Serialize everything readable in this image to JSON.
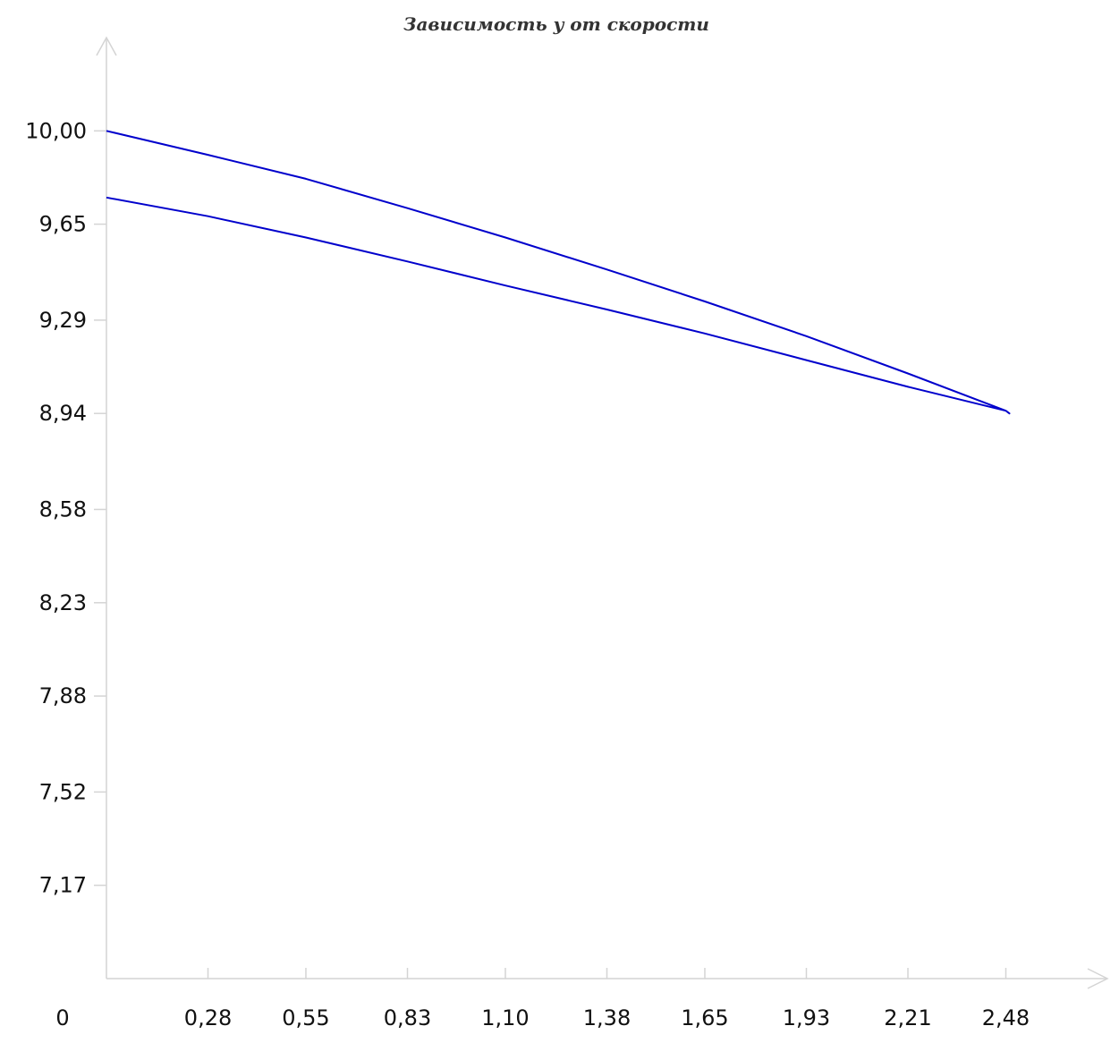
{
  "chart_data": {
    "type": "line",
    "title": "Зависимость y от скорости",
    "xlabel": "",
    "ylabel": "",
    "origin_label": "0",
    "x_ticks": [
      {
        "value": 0.28,
        "label": "0,28"
      },
      {
        "value": 0.55,
        "label": "0,55"
      },
      {
        "value": 0.83,
        "label": "0,83"
      },
      {
        "value": 1.1,
        "label": "1,10"
      },
      {
        "value": 1.38,
        "label": "1,38"
      },
      {
        "value": 1.65,
        "label": "1,65"
      },
      {
        "value": 1.93,
        "label": "1,93"
      },
      {
        "value": 2.21,
        "label": "2,21"
      },
      {
        "value": 2.48,
        "label": "2,48"
      }
    ],
    "y_ticks": [
      {
        "value": 10.0,
        "label": "10,00"
      },
      {
        "value": 9.65,
        "label": "9,65"
      },
      {
        "value": 9.29,
        "label": "9,29"
      },
      {
        "value": 8.94,
        "label": "8,94"
      },
      {
        "value": 8.58,
        "label": "8,58"
      },
      {
        "value": 8.23,
        "label": "8,23"
      },
      {
        "value": 7.88,
        "label": "7,88"
      },
      {
        "value": 7.52,
        "label": "7,52"
      },
      {
        "value": 7.17,
        "label": "7,17"
      }
    ],
    "xlim": [
      0,
      2.76
    ],
    "ylim": [
      6.82,
      10.35
    ],
    "grid": false,
    "series": [
      {
        "color": "#0000cc",
        "x": [
          0,
          0.28,
          0.55,
          0.83,
          1.1,
          1.38,
          1.65,
          1.93,
          2.21,
          2.48,
          2.49,
          2.48,
          2.21,
          1.93,
          1.65,
          1.38,
          1.1,
          0.83,
          0.55,
          0.28,
          0
        ],
        "y": [
          10.0,
          9.91,
          9.82,
          9.71,
          9.6,
          9.48,
          9.36,
          9.23,
          9.09,
          8.95,
          8.94,
          8.95,
          9.04,
          9.14,
          9.24,
          9.33,
          9.42,
          9.51,
          9.6,
          9.68,
          9.75
        ]
      }
    ]
  }
}
